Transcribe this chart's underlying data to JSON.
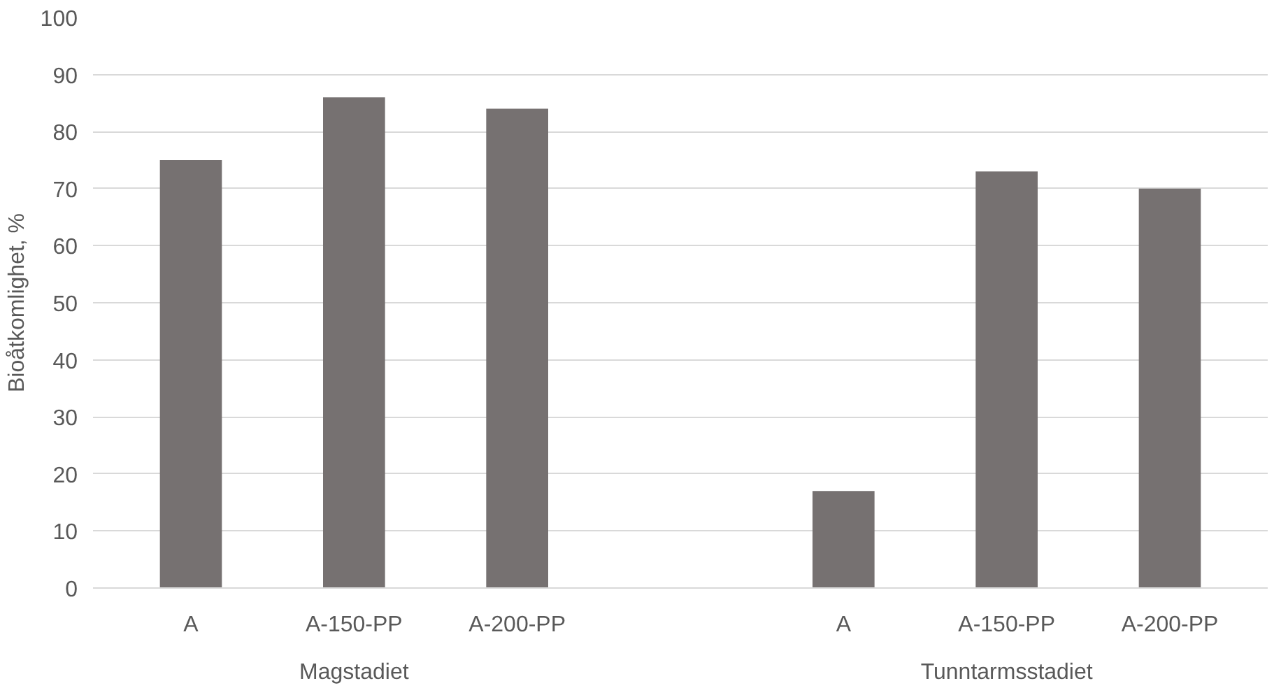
{
  "chart_data": {
    "type": "bar",
    "ylabel": "Bioåtkomlighet, %",
    "categories": [
      "A",
      "A-150-PP",
      "A-200-PP",
      null,
      "A",
      "A-150-PP",
      "A-200-PP"
    ],
    "values": [
      75,
      86,
      84,
      null,
      17,
      73,
      70
    ],
    "color": "#767171",
    "ylim": [
      0,
      100
    ],
    "yticks": [
      0,
      10,
      20,
      30,
      40,
      50,
      60,
      70,
      80,
      90,
      100
    ],
    "grid": "y",
    "annotations": [
      "Magstadiet",
      "Tunntarmsstadiet"
    ]
  }
}
